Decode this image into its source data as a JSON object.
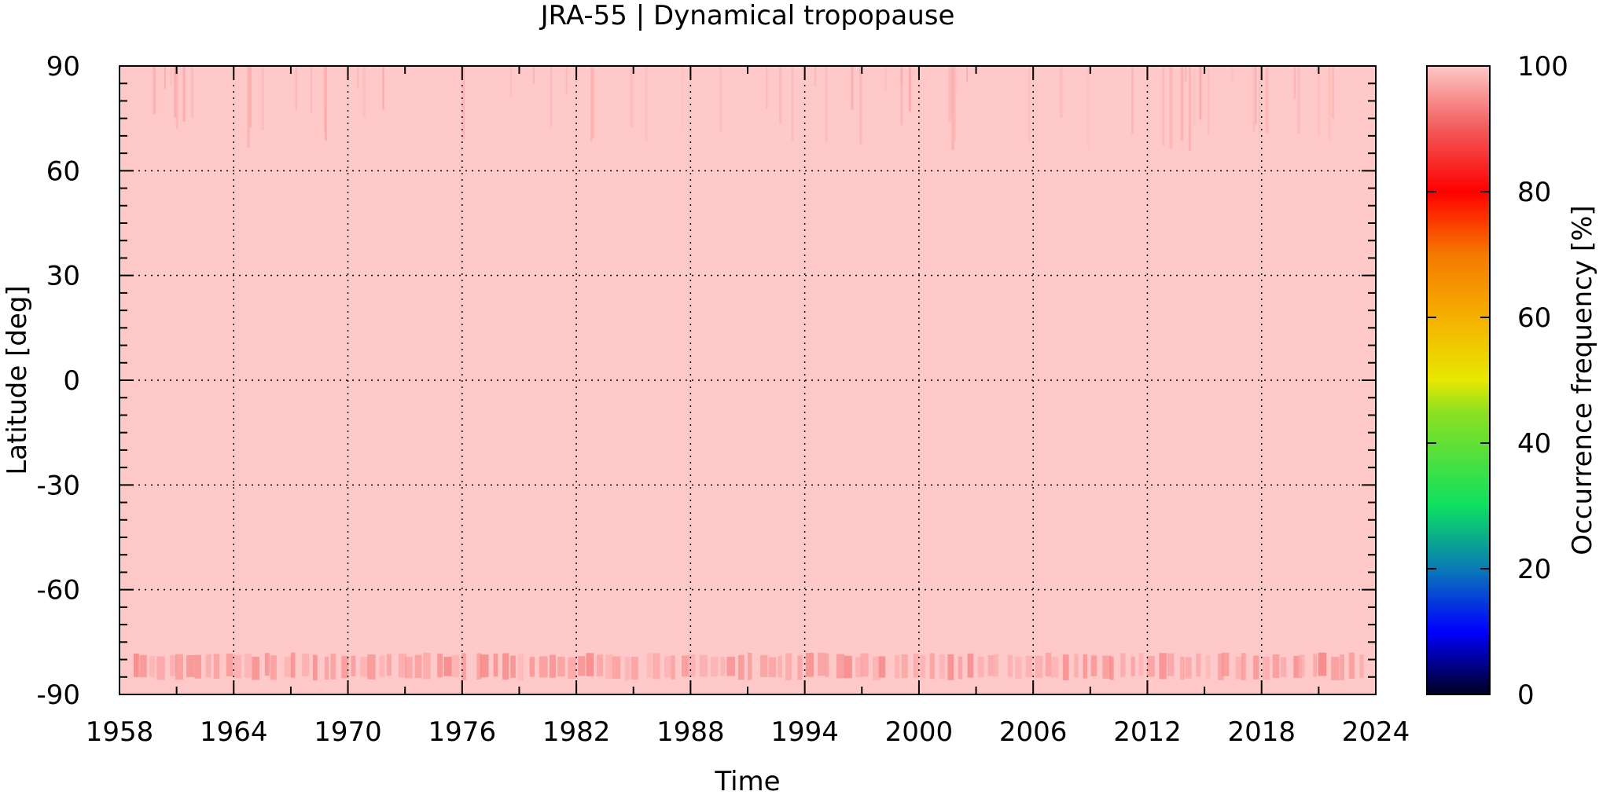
{
  "chart_data": {
    "type": "heatmap",
    "title": "JRA-55 | Dynamical tropopause",
    "xlabel": "Time",
    "ylabel": "Latitude [deg]",
    "xlim": [
      1958,
      2024
    ],
    "ylim": [
      -90,
      90
    ],
    "x_ticks": [
      "1958",
      "1964",
      "1970",
      "1976",
      "1982",
      "1988",
      "1994",
      "2000",
      "2006",
      "2012",
      "2018",
      "2024"
    ],
    "y_ticks": [
      "90",
      "60",
      "30",
      "0",
      "-30",
      "-60",
      "-90"
    ],
    "grid": true,
    "colorbar": {
      "label": "Occurrence frequency [%]",
      "range": [
        0,
        100
      ],
      "ticks": [
        "0",
        "20",
        "40",
        "60",
        "80",
        "100"
      ],
      "colormap": [
        {
          "value": 0,
          "color": "#000020"
        },
        {
          "value": 10,
          "color": "#0000ff"
        },
        {
          "value": 20,
          "color": "#0a7ab5"
        },
        {
          "value": 30,
          "color": "#0de060"
        },
        {
          "value": 45,
          "color": "#8ee020"
        },
        {
          "value": 50,
          "color": "#e8e800"
        },
        {
          "value": 60,
          "color": "#f5b000"
        },
        {
          "value": 70,
          "color": "#f57a00"
        },
        {
          "value": 80,
          "color": "#ff0000"
        },
        {
          "value": 90,
          "color": "#f25a5a"
        },
        {
          "value": 100,
          "color": "#ffc8c8"
        }
      ]
    },
    "field": {
      "background_value": 99.5,
      "background_color": "#ffc9c9",
      "bands": [
        {
          "name": "south-polar band",
          "lat_range": [
            -86,
            -78
          ],
          "value_range": [
            93,
            98
          ],
          "pattern": "seasonal, once per year"
        },
        {
          "name": "north-polar streaks",
          "lat_range": [
            62,
            90
          ],
          "value_range": [
            96,
            99
          ],
          "pattern": "sporadic"
        }
      ]
    }
  }
}
